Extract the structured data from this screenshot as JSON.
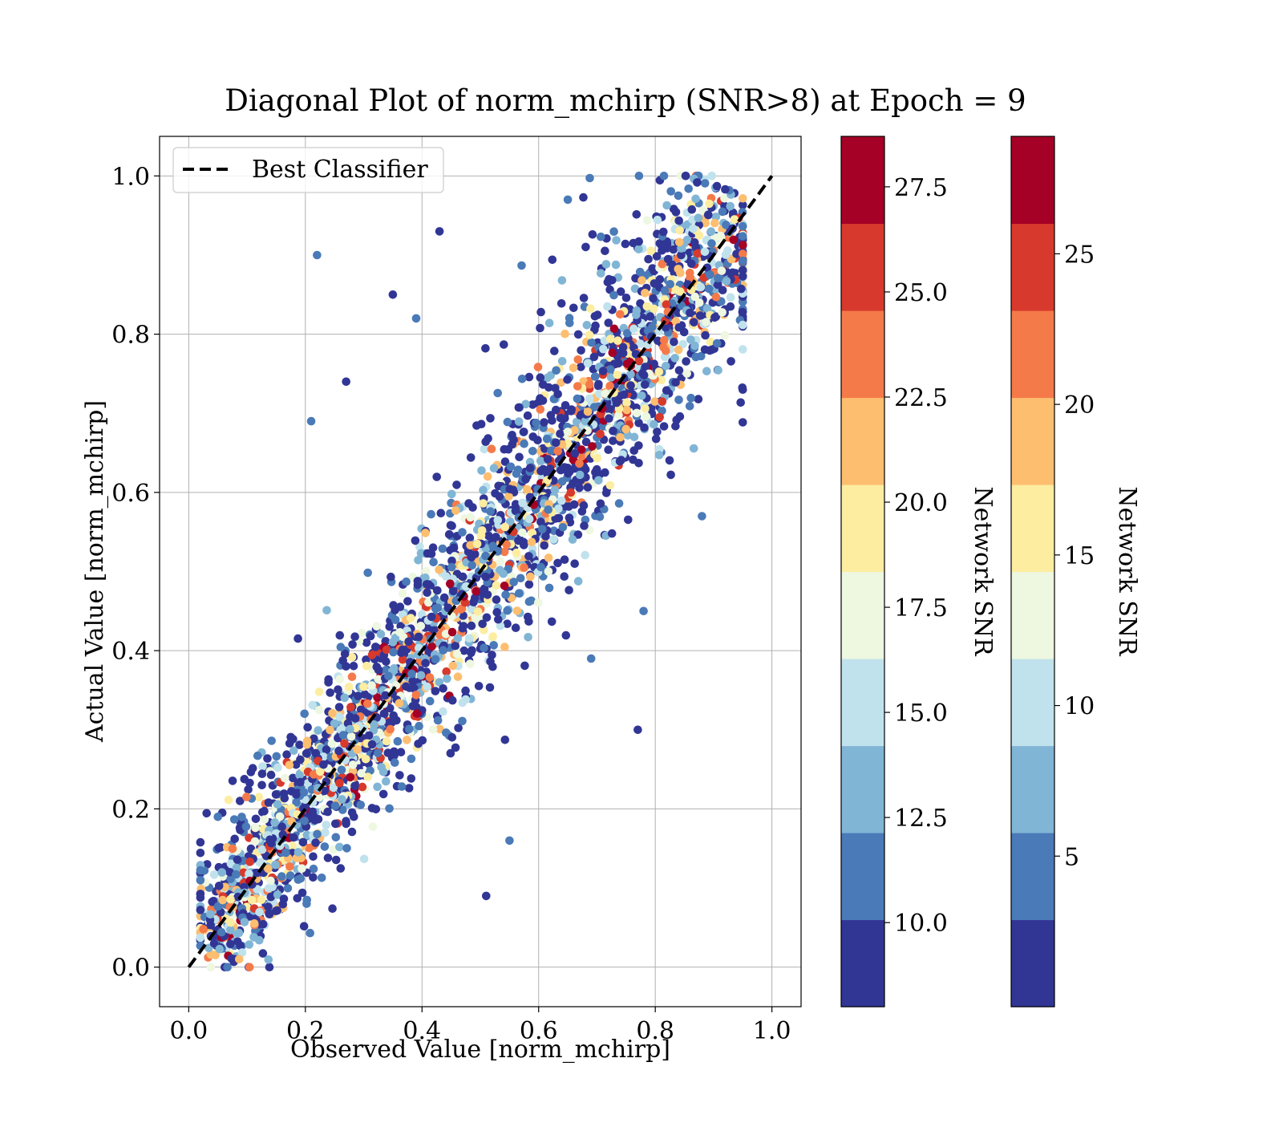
{
  "chart_data": {
    "type": "scatter",
    "title": "Diagonal Plot of norm_mchirp (SNR>8) at Epoch = 9",
    "xlabel": "Observed Value [norm_mchirp]",
    "ylabel": "Actual Value [norm_mchirp]",
    "xlim": [
      -0.05,
      1.05
    ],
    "ylim": [
      -0.05,
      1.05
    ],
    "x_ticks": [
      "0.0",
      "0.2",
      "0.4",
      "0.6",
      "0.8",
      "1.0"
    ],
    "y_ticks": [
      "0.0",
      "0.2",
      "0.4",
      "0.6",
      "0.8",
      "1.0"
    ],
    "grid": true,
    "legend": {
      "position": "upper-left",
      "entries": [
        "Best Classifier"
      ]
    },
    "reference_line": {
      "name": "Best Classifier",
      "x": [
        0.0,
        1.0
      ],
      "y": [
        0.0,
        1.0
      ],
      "style": "dashed",
      "color": "#000000"
    },
    "scatter": {
      "approx_point_count": 5000,
      "color_by": "Network SNR",
      "note_color_scale": [
        8,
        28.7
      ],
      "outliers": [
        {
          "x": 0.22,
          "y": 0.9
        },
        {
          "x": 0.43,
          "y": 0.93
        },
        {
          "x": 0.35,
          "y": 0.85
        },
        {
          "x": 0.39,
          "y": 0.82
        },
        {
          "x": 0.21,
          "y": 0.69
        },
        {
          "x": 0.27,
          "y": 0.74
        },
        {
          "x": 0.77,
          "y": 0.3
        },
        {
          "x": 0.69,
          "y": 0.39
        },
        {
          "x": 0.88,
          "y": 0.57
        },
        {
          "x": 0.05,
          "y": 0.19
        },
        {
          "x": 0.55,
          "y": 0.16
        },
        {
          "x": 0.51,
          "y": 0.09
        },
        {
          "x": 0.65,
          "y": 0.97
        },
        {
          "x": 0.78,
          "y": 0.45
        }
      ]
    },
    "colorbars": [
      {
        "label": "Network SNR",
        "range": [
          8.0,
          28.7
        ],
        "ticks": [
          10.0,
          12.5,
          15.0,
          17.5,
          20.0,
          22.5,
          25.0,
          27.5
        ],
        "tick_labels": [
          "10.0",
          "12.5",
          "15.0",
          "17.5",
          "20.0",
          "22.5",
          "25.0",
          "27.5"
        ]
      },
      {
        "label": "Network SNR",
        "range": [
          0.0,
          28.9
        ],
        "ticks": [
          5,
          10,
          15,
          20,
          25
        ],
        "tick_labels": [
          "5",
          "10",
          "15",
          "20",
          "25"
        ]
      }
    ],
    "colormap": [
      "#313695",
      "#4a7ab7",
      "#81b5d5",
      "#c0e2ed",
      "#eef7e0",
      "#fdeda1",
      "#fdbe70",
      "#f57a4a",
      "#d73a2c",
      "#a50026"
    ]
  }
}
